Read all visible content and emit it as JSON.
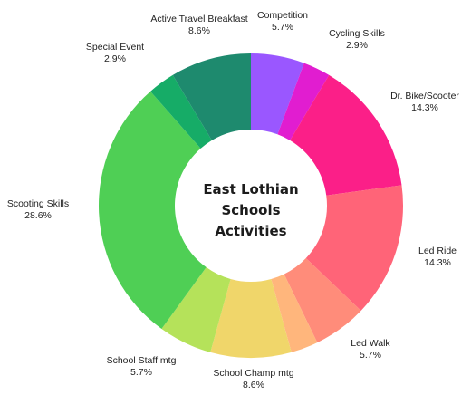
{
  "chart_data": {
    "type": "pie",
    "title_lines": [
      "East Lothian",
      "Schools",
      "Activities"
    ],
    "slices": [
      {
        "label": "Competition",
        "value": 5.7,
        "display": "5.7%",
        "color": "#9a57ff"
      },
      {
        "label": "Cycling Skills",
        "value": 2.9,
        "display": "2.9%",
        "color": "#e11dd0"
      },
      {
        "label": "Dr. Bike/Scooter",
        "value": 14.3,
        "display": "14.3%",
        "color": "#fb1f88"
      },
      {
        "label": "Led Ride",
        "value": 14.3,
        "display": "14.3%",
        "color": "#ff6478"
      },
      {
        "label": "Led Walk",
        "value": 5.7,
        "display": "5.7%",
        "color": "#ff8c7a"
      },
      {
        "label": "",
        "value": 2.9,
        "display": "",
        "color": "#ffb67c"
      },
      {
        "label": "School Champ mtg",
        "value": 8.6,
        "display": "8.6%",
        "color": "#f0d66a"
      },
      {
        "label": "School Staff mtg",
        "value": 5.7,
        "display": "5.7%",
        "color": "#b5e25a"
      },
      {
        "label": "Scooting Skills",
        "value": 28.6,
        "display": "28.6%",
        "color": "#4fcf55"
      },
      {
        "label": "Special Event",
        "value": 2.9,
        "display": "2.9%",
        "color": "#16ac67"
      },
      {
        "label": "Active Travel Breakfast",
        "value": 8.6,
        "display": "8.6%",
        "color": "#1e8a6e"
      }
    ]
  }
}
